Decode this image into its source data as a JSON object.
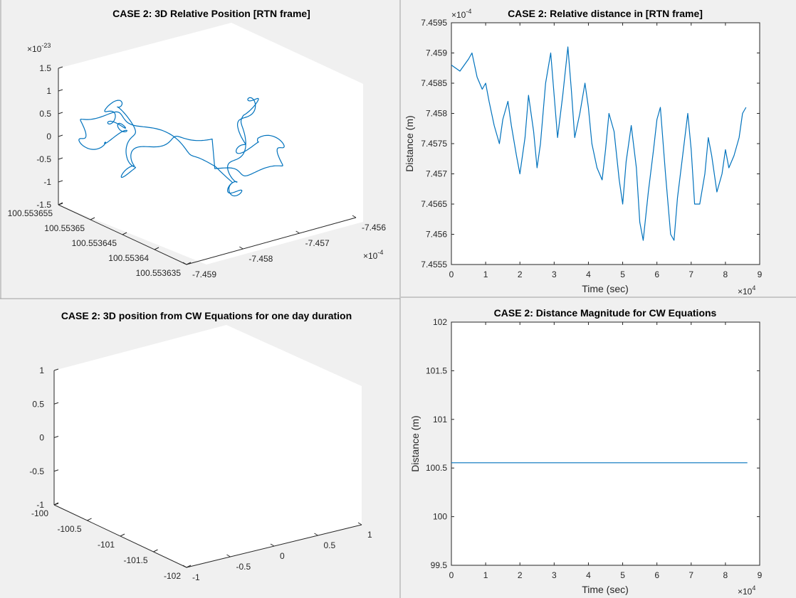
{
  "colors": {
    "figure_bg": "#f0f0f0",
    "axes_bg": "#ffffff",
    "series": "#0072bd",
    "axis": "#262626"
  },
  "chart_data": [
    {
      "id": "p1",
      "type": "line3d",
      "title": "CASE 2: 3D Relative Position [RTN frame]",
      "z_exponent": "-23",
      "x_exponent": "-4",
      "zlim": [
        -1.5,
        1.5
      ],
      "z_ticks": [
        "1.5",
        "1",
        "0.5",
        "0",
        "-0.5",
        "-1",
        "-1.5"
      ],
      "y_ticks": [
        "100.553655",
        "100.55365",
        "100.553645",
        "100.55364",
        "100.553635"
      ],
      "x_ticks": [
        "-7.459",
        "-7.458",
        "-7.457",
        "-7.456"
      ],
      "note": "closed wandering trajectory"
    },
    {
      "id": "p2",
      "type": "line",
      "title": "CASE 2: Relative distance in [RTN frame]",
      "xlabel": "Time (sec)",
      "ylabel": "Distance (m)",
      "x_exponent": "4",
      "y_exponent": "-4",
      "xlim": [
        0,
        90000
      ],
      "ylim": [
        7.4555,
        7.4595
      ],
      "x_ticks": [
        "0",
        "1",
        "2",
        "3",
        "4",
        "5",
        "6",
        "7",
        "8",
        "9"
      ],
      "y_ticks": [
        "7.4595",
        "7.459",
        "7.4585",
        "7.458",
        "7.4575",
        "7.457",
        "7.4565",
        "7.456",
        "7.4555"
      ],
      "x": [
        0,
        2500,
        5000,
        6000,
        7500,
        9000,
        10000,
        11000,
        12500,
        14000,
        15000,
        16500,
        17500,
        19000,
        20000,
        21500,
        22500,
        24000,
        25000,
        26000,
        27500,
        29000,
        30000,
        31000,
        32500,
        34000,
        35000,
        36000,
        37500,
        39000,
        40000,
        41000,
        42500,
        44000,
        45000,
        46000,
        47500,
        49000,
        50000,
        51000,
        52500,
        54000,
        55000,
        56000,
        57500,
        59000,
        60000,
        61000,
        62500,
        64000,
        65000,
        66000,
        67500,
        69000,
        70000,
        71000,
        72500,
        74000,
        75000,
        76000,
        77500,
        79000,
        80000,
        81000,
        82500,
        84000,
        85000,
        86000
      ],
      "values": [
        7.4588,
        7.4587,
        7.4589,
        7.459,
        7.4586,
        7.4584,
        7.4585,
        7.4582,
        7.4578,
        7.4575,
        7.4579,
        7.4582,
        7.4578,
        7.4573,
        7.457,
        7.4576,
        7.4583,
        7.4577,
        7.4571,
        7.4575,
        7.4585,
        7.459,
        7.4583,
        7.4576,
        7.4583,
        7.4591,
        7.4584,
        7.4576,
        7.458,
        7.4585,
        7.4581,
        7.4575,
        7.4571,
        7.4569,
        7.4574,
        7.458,
        7.4577,
        7.4569,
        7.4565,
        7.4572,
        7.4578,
        7.4571,
        7.4562,
        7.4559,
        7.4567,
        7.4574,
        7.4579,
        7.4581,
        7.457,
        7.456,
        7.4559,
        7.4566,
        7.4573,
        7.458,
        7.4574,
        7.4565,
        7.4565,
        7.457,
        7.4576,
        7.4573,
        7.4567,
        7.457,
        7.4574,
        7.4571,
        7.4573,
        7.4576,
        7.458,
        7.4581
      ]
    },
    {
      "id": "p3",
      "type": "line3d",
      "title": "CASE 2: 3D position from CW Equations for one day duration",
      "zlim": [
        -1,
        1
      ],
      "z_ticks": [
        "1",
        "0.5",
        "0",
        "-0.5",
        "-1"
      ],
      "y_ticks": [
        "-100",
        "-100.5",
        "-101",
        "-101.5",
        "-102"
      ],
      "x_ticks": [
        "-1",
        "-0.5",
        "0",
        "0.5",
        "1"
      ]
    },
    {
      "id": "p4",
      "type": "line",
      "title": "CASE 2: Distance Magnitude for CW Equations",
      "xlabel": "Time (sec)",
      "ylabel": "Distance (m)",
      "x_exponent": "4",
      "xlim": [
        0,
        90000
      ],
      "ylim": [
        99.5,
        102
      ],
      "x_ticks": [
        "0",
        "1",
        "2",
        "3",
        "4",
        "5",
        "6",
        "7",
        "8",
        "9"
      ],
      "y_ticks": [
        "102",
        "101.5",
        "101",
        "100.5",
        "100",
        "99.5"
      ],
      "x": [
        0,
        86400
      ],
      "values": [
        100.554,
        100.554
      ]
    }
  ]
}
